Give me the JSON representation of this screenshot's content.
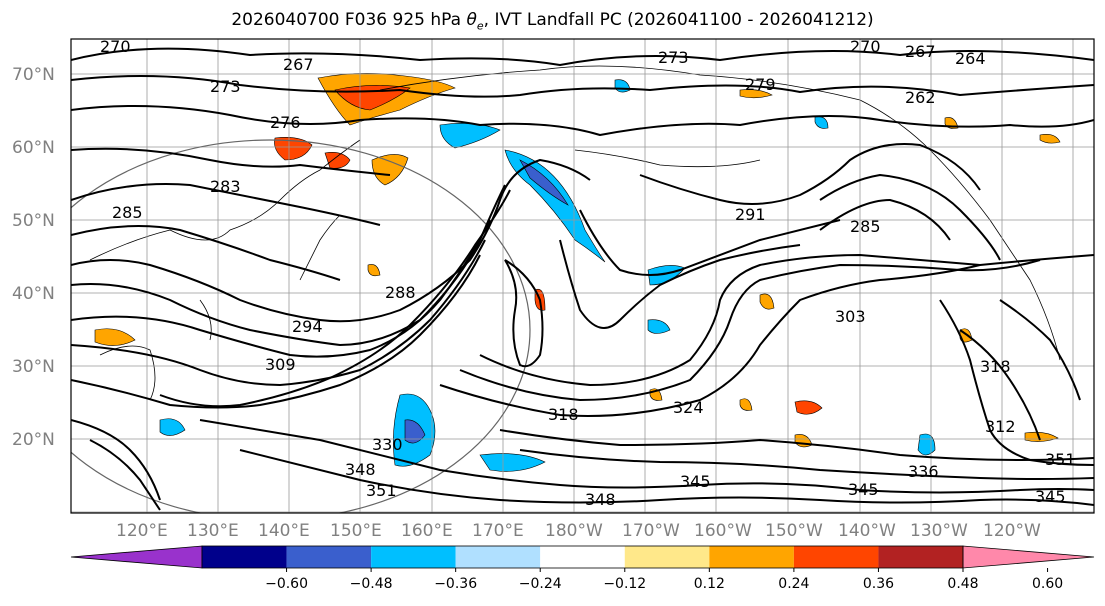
{
  "title_text": "2026040700 F036 925 hPa",
  "title_theta": "θ",
  "title_sub": "e",
  "title_rest": ", IVT Landfall PC (2026041100 - 2026041212)",
  "lat_labels": [
    "70°N",
    "60°N",
    "50°N",
    "40°N",
    "30°N",
    "20°N"
  ],
  "lon_labels": [
    "120°E",
    "130°E",
    "140°E",
    "150°E",
    "160°E",
    "170°E",
    "180°W",
    "170°W",
    "160°W",
    "150°W",
    "140°W",
    "130°W",
    "120°W"
  ],
  "colorbar": {
    "ticks": [
      "−0.60",
      "−0.48",
      "−0.36",
      "−0.24",
      "−0.12",
      "0.12",
      "0.24",
      "0.36",
      "0.48",
      "0.60"
    ],
    "colors": [
      "#9932cc",
      "#00008b",
      "#3a5fcd",
      "#00bfff",
      "#b0e0ff",
      "#ffffff",
      "#ffe88a",
      "#ffa500",
      "#ff4500",
      "#b22222",
      "#ff88aa"
    ]
  },
  "contour_labels": [
    "270",
    "267",
    "273",
    "276",
    "279",
    "283",
    "285",
    "288",
    "294",
    "309",
    "303",
    "318",
    "324",
    "330",
    "336",
    "345",
    "348",
    "351",
    "312",
    "264",
    "262",
    "291",
    "285",
    "345",
    "351",
    "270"
  ]
}
